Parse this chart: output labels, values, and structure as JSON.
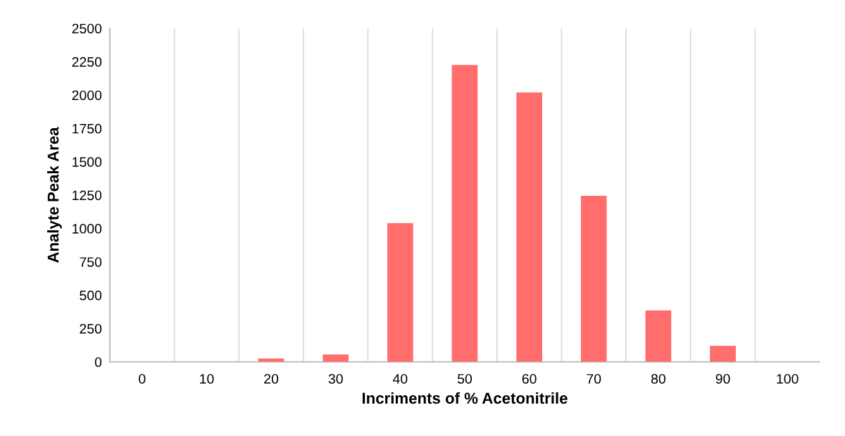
{
  "chart_data": {
    "type": "bar",
    "xlabel": "Incriments of % Acetonitrile",
    "ylabel": "Analyte Peak Area",
    "categories": [
      "0",
      "10",
      "20",
      "30",
      "40",
      "50",
      "60",
      "70",
      "80",
      "90",
      "100"
    ],
    "values": [
      0,
      0,
      25,
      55,
      1040,
      2225,
      2020,
      1245,
      385,
      120,
      0
    ],
    "color": "#ff6d6d",
    "ylim": [
      0,
      2500
    ],
    "yticks": [
      0,
      250,
      500,
      750,
      1000,
      1250,
      1500,
      1750,
      2000,
      2250,
      2500
    ],
    "grid": "x"
  }
}
